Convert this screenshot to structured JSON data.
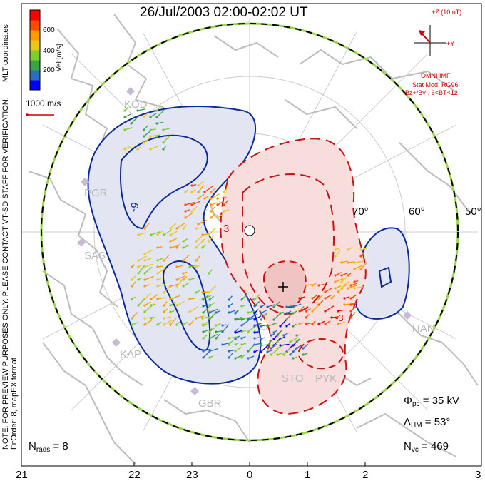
{
  "title": "26/Jul/2003 02:00-02:02 UT",
  "side_notes": {
    "preview_note": "NOTE: FOR PREVIEW PURPOSES ONLY. PLEASE CONTACT VT-SD STAFF FOR VERIFICATION.",
    "fit_order": "FitOrder: 8, mapEX format",
    "coords": "MLT coordinates"
  },
  "colorbar": {
    "label": "Vel [m/s]",
    "ticks": [
      "600",
      "400",
      "200"
    ],
    "colors": [
      "#0000ff",
      "#2a6fbf",
      "#3aa34a",
      "#7fcf2a",
      "#e8c81a",
      "#ff9a00",
      "#ff4a00",
      "#ff0000"
    ]
  },
  "scale_vector": {
    "label": "1000 m/s",
    "color": "#cc0000"
  },
  "imf": {
    "z_label": "+Z (10 nT)",
    "y_label": "+Y",
    "source": "OMNI IMF",
    "stat_model": "Stat Mod: RG96",
    "bin": "Bz+/By-, 6<BT<12"
  },
  "radars": [
    {
      "code": "KOD"
    },
    {
      "code": "PGR"
    },
    {
      "code": "SAS"
    },
    {
      "code": "KAP"
    },
    {
      "code": "GBR"
    },
    {
      "code": "STO"
    },
    {
      "code": "PYK"
    },
    {
      "code": "HAN"
    }
  ],
  "latitudes": [
    "70°",
    "60°",
    "50°"
  ],
  "contour_labels": {
    "negative": "-9",
    "positive": "3",
    "negative_small": "-3"
  },
  "mlt_axis": [
    "21",
    "22",
    "23",
    "0",
    "1",
    "2",
    "3"
  ],
  "stats": {
    "phi_pc": {
      "symbol": "Φ",
      "sub": "pc",
      "value": " = 35 kV"
    },
    "lambda_hm": {
      "symbol": "Λ",
      "sub": "HM",
      "value": " = 53°"
    },
    "n_vc": {
      "symbol": "N",
      "sub": "vc",
      "value": " = 469"
    },
    "n_rads": {
      "symbol": "N",
      "sub": "rads",
      "value": " = 8"
    }
  },
  "colors": {
    "negative_fill": "#e3e5f3",
    "negative_line": "#0a2a9c",
    "positive_fill": "#f8dddd",
    "positive_line": "#cc1111",
    "coast": "#bdbdbd",
    "grid": "#cccccc",
    "boundary_dash": "#000000",
    "boundary_green": "#9ad64a"
  }
}
